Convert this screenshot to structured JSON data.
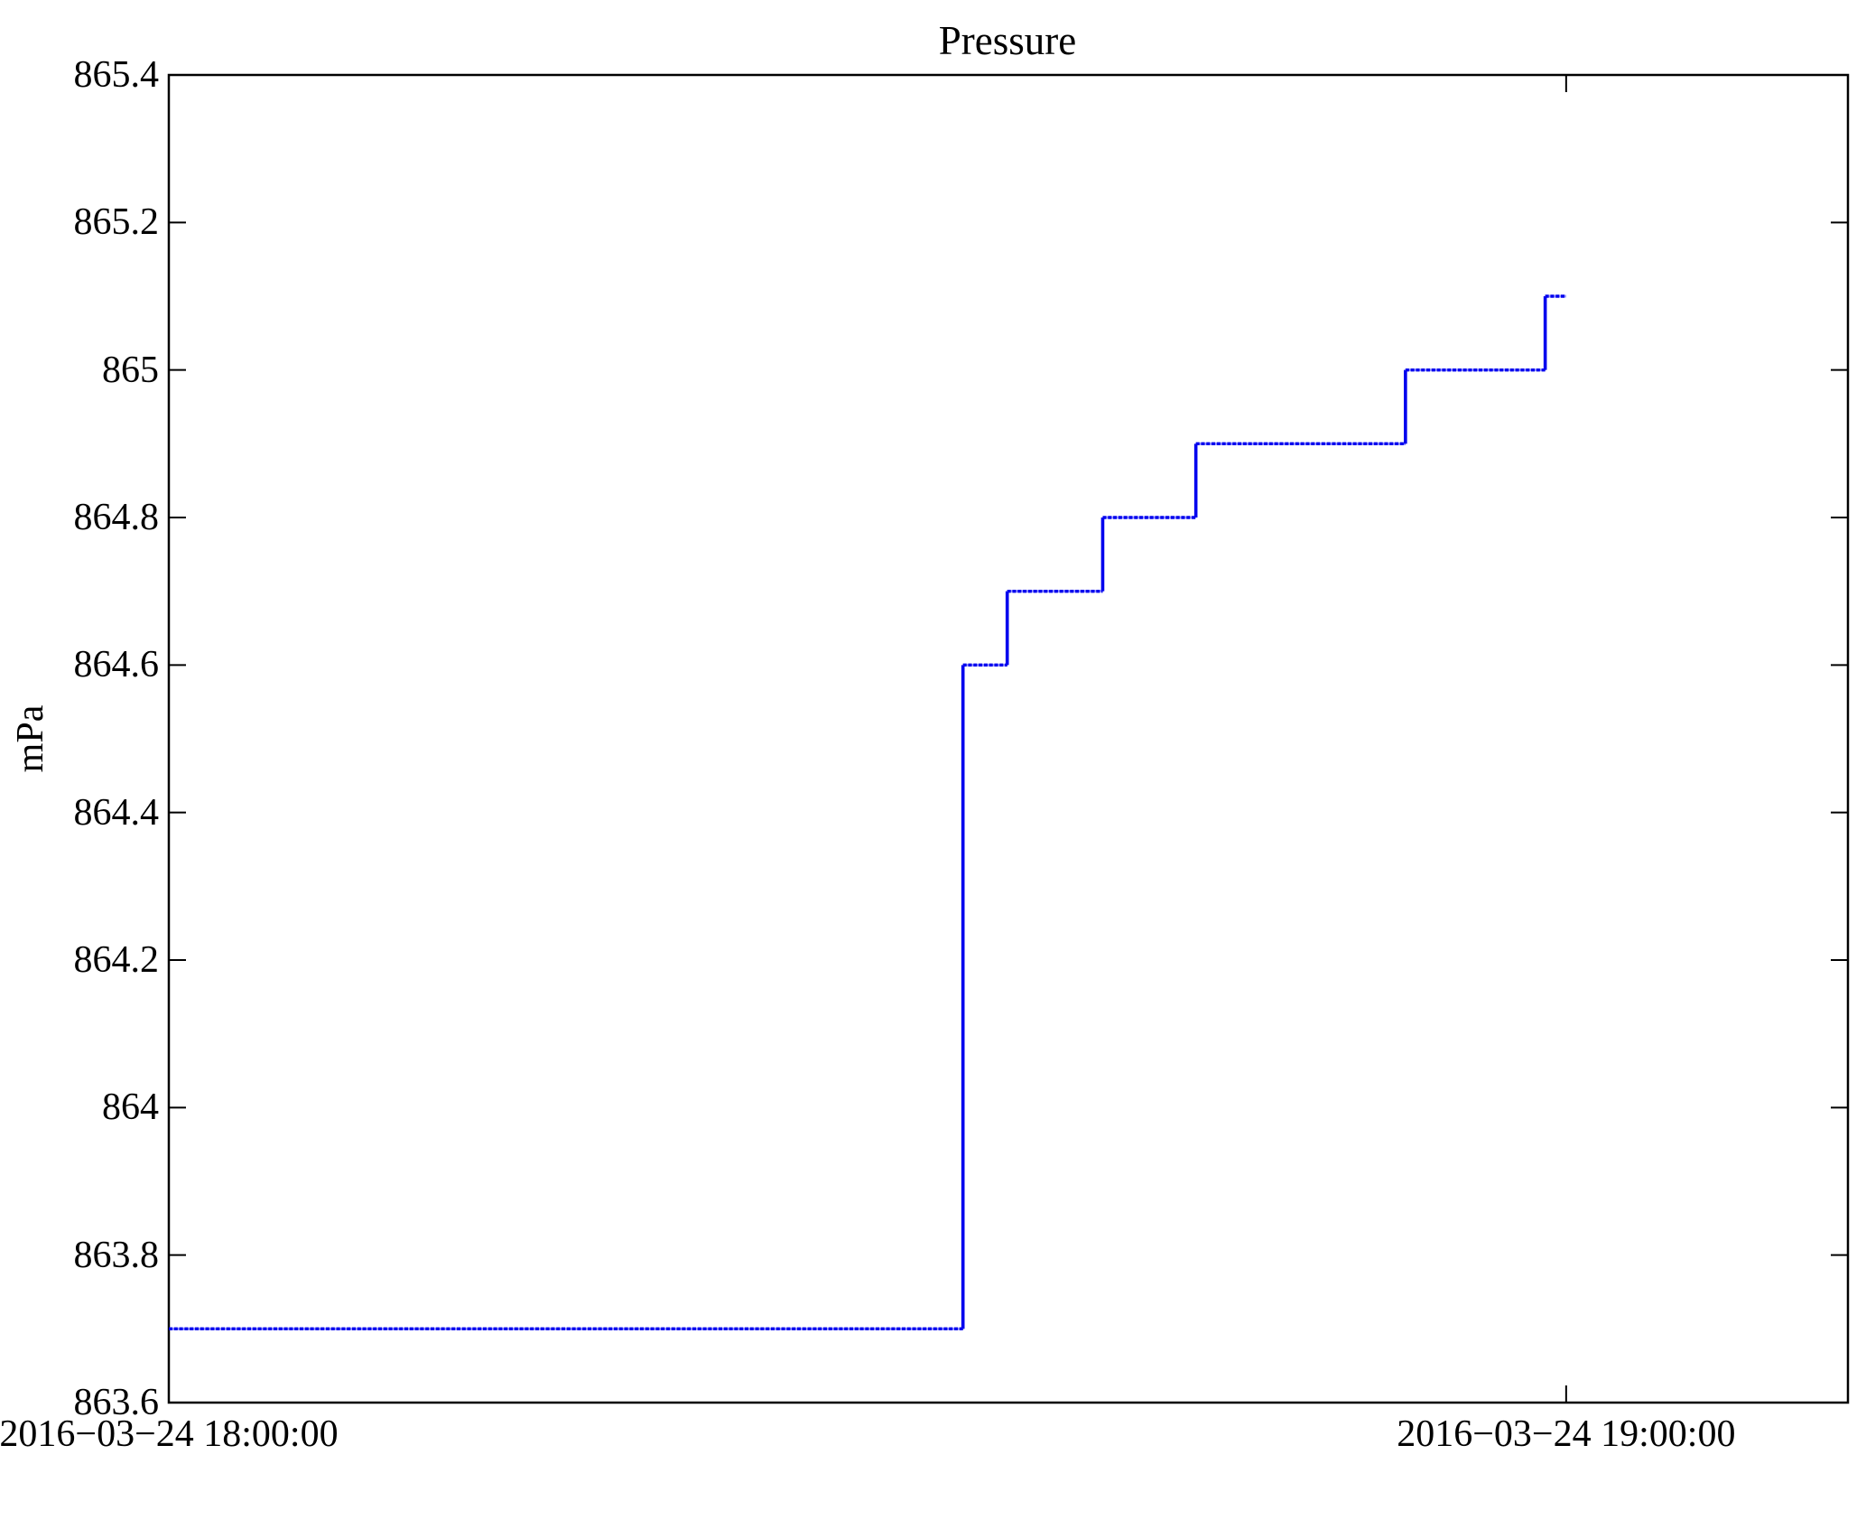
{
  "chart_data": {
    "type": "line",
    "line_style": "step",
    "title": "Pressure",
    "xlabel": "",
    "ylabel": "mPa",
    "grid": false,
    "legend": "none",
    "colors": {
      "series": "#0000ee",
      "series_gap": "#9999ff",
      "axis": "#000000",
      "background": "#ffffff",
      "text": "#000000"
    },
    "x_axis": {
      "unit": "minutes after 2016-03-24 18:00:00",
      "min": 0,
      "max": 72.1,
      "ticks": [
        {
          "minutes": 0,
          "label": "2016−03−24 18:00:00"
        },
        {
          "minutes": 60,
          "label": "2016−03−24 19:00:00"
        }
      ]
    },
    "y_axis": {
      "unit": "mPa",
      "min": 863.6,
      "max": 865.4,
      "tick_step": 0.2,
      "ticks": [
        {
          "value": 863.6,
          "label": "863.6"
        },
        {
          "value": 863.8,
          "label": "863.8"
        },
        {
          "value": 864.0,
          "label": "864"
        },
        {
          "value": 864.2,
          "label": "864.2"
        },
        {
          "value": 864.4,
          "label": "864.4"
        },
        {
          "value": 864.6,
          "label": "864.6"
        },
        {
          "value": 864.8,
          "label": "864.8"
        },
        {
          "value": 865.0,
          "label": "865"
        },
        {
          "value": 865.2,
          "label": "865.2"
        },
        {
          "value": 865.4,
          "label": "865.4"
        }
      ]
    },
    "series": [
      {
        "name": "Pressure",
        "color": "#0000ee",
        "points_minutes_mpa": [
          [
            0.0,
            863.7
          ],
          [
            34.1,
            863.7
          ],
          [
            34.1,
            864.6
          ],
          [
            36.0,
            864.6
          ],
          [
            36.0,
            864.7
          ],
          [
            40.1,
            864.7
          ],
          [
            40.1,
            864.8
          ],
          [
            44.1,
            864.8
          ],
          [
            44.1,
            864.9
          ],
          [
            53.1,
            864.9
          ],
          [
            53.1,
            865.0
          ],
          [
            59.1,
            865.0
          ],
          [
            59.1,
            865.1
          ],
          [
            60.0,
            865.1
          ]
        ]
      }
    ]
  }
}
